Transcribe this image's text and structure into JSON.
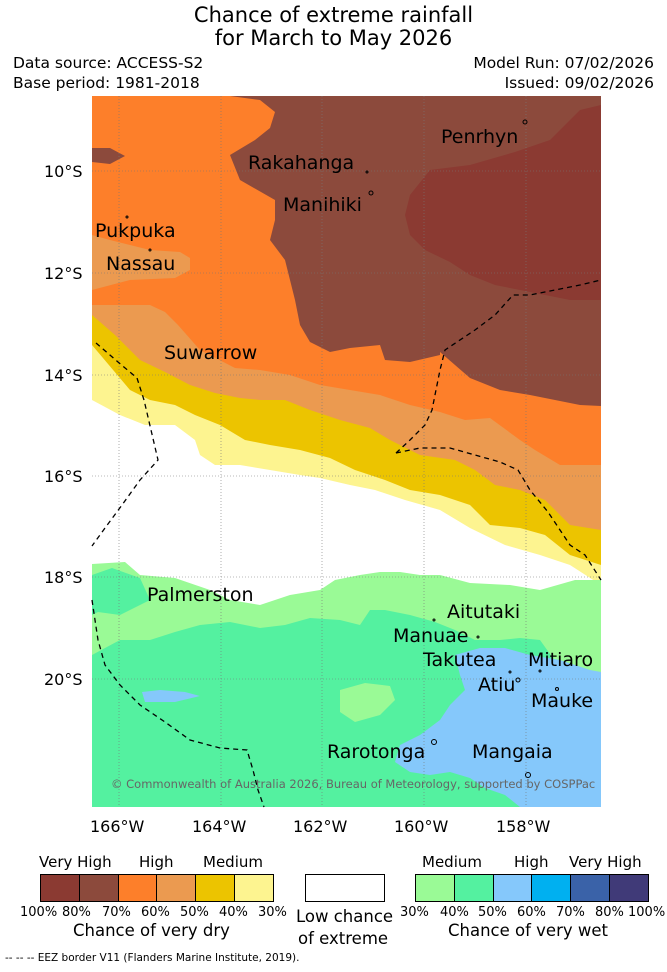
{
  "header": {
    "title_line1": "Chance of extreme rainfall",
    "title_line2": "for March to May 2026",
    "data_source": "Data source: ACCESS-S2",
    "base_period": "Base period: 1981-2018",
    "model_run": "Model Run: 07/02/2026",
    "issued": "Issued: 09/02/2026"
  },
  "axes": {
    "latitudes": [
      "10°S",
      "12°S",
      "14°S",
      "16°S",
      "18°S",
      "20°S"
    ],
    "longitudes": [
      "166°W",
      "164°W",
      "162°W",
      "160°W",
      "158°W"
    ]
  },
  "places": {
    "penrhyn": "Penrhyn",
    "rakahanga": "Rakahanga",
    "manihiki": "Manihiki",
    "pukapuka": "Pukpuka",
    "nassau": "Nassau",
    "suwarrow": "Suwarrow",
    "palmerston": "Palmerston",
    "aitutaki": "Aitutaki",
    "manuae": "Manuae",
    "takutea": "Takutea",
    "mitiaro": "Mitiaro",
    "atiu": "Atiu",
    "mauke": "Mauke",
    "rarotonga": "Rarotonga",
    "mangaia": "Mangaia"
  },
  "credit": "© Commonwealth of Australia 2026, Bureau of Meteorology, supported by COSPPac",
  "legend": {
    "dry": {
      "headings": [
        "Very High",
        "High",
        "Medium"
      ],
      "ticks": [
        "100%",
        "80%",
        "70%",
        "60%",
        "50%",
        "40%",
        "30%"
      ],
      "caption": "Chance of very dry",
      "colors": [
        "#8b3a32",
        "#8c4a3c",
        "#fd7f2a",
        "#eb9a50",
        "#ecc400",
        "#fdf490"
      ]
    },
    "low": {
      "caption_line1": "Low chance",
      "caption_line2": "of extreme",
      "color": "#ffffff"
    },
    "wet": {
      "headings": [
        "Medium",
        "High",
        "Very High"
      ],
      "ticks": [
        "30%",
        "40%",
        "50%",
        "60%",
        "70%",
        "80%",
        "100%"
      ],
      "caption": "Chance of very wet",
      "colors": [
        "#9afa96",
        "#54f1a0",
        "#85c8fb",
        "#00b0f0",
        "#3a62a8",
        "#403a78"
      ]
    }
  },
  "footer": "--  --  -- EEZ border V11 (Flanders Marine Institute, 2019)."
}
